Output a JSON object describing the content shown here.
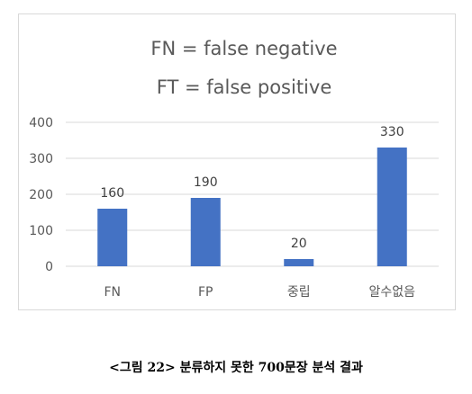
{
  "chart_data": {
    "type": "bar",
    "title_lines": [
      "FN = false negative",
      "FT = false positive"
    ],
    "categories": [
      "FN",
      "FP",
      "중립",
      "알수없음"
    ],
    "values": [
      160,
      190,
      20,
      330
    ],
    "data_labels": [
      "160",
      "190",
      "20",
      "330"
    ],
    "yticks": [
      0,
      100,
      200,
      300,
      400
    ],
    "ylim": [
      0,
      400
    ],
    "xlabel": "",
    "ylabel": "",
    "grid": true,
    "legend": false,
    "bar_color": "#4472c4",
    "grid_color": "#d9d9d9"
  },
  "caption": "<그림 22>  분류하지 못한 700문장 분석 결과"
}
